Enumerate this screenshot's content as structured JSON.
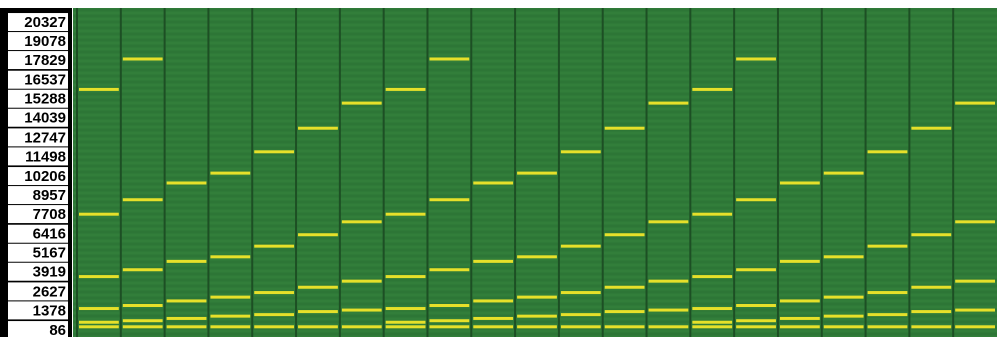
{
  "chart_data": {
    "type": "spectrogram",
    "ylim": [
      -370,
      21250
    ],
    "yticks": [
      86,
      1378,
      2627,
      3919,
      5167,
      6416,
      7708,
      8957,
      10206,
      11498,
      12747,
      14039,
      15288,
      16537,
      17829,
      19078,
      20327
    ],
    "columns": [
      [
        15900,
        7700,
        3600,
        1500,
        600,
        300
      ],
      [
        17900,
        8650,
        4050,
        1700,
        700,
        300
      ],
      [
        9750,
        4600,
        2000,
        850,
        300
      ],
      [
        10400,
        4900,
        2250,
        1000,
        300
      ],
      [
        11800,
        5600,
        2550,
        1100,
        300
      ],
      [
        13350,
        6350,
        2900,
        1300,
        300
      ],
      [
        15000,
        7200,
        3300,
        1400,
        300
      ],
      [
        15900,
        7700,
        3600,
        1500,
        600,
        300
      ],
      [
        17900,
        8650,
        4050,
        1700,
        700,
        300
      ],
      [
        9750,
        4600,
        2000,
        850,
        300
      ],
      [
        10400,
        4900,
        2250,
        1000,
        300
      ],
      [
        11800,
        5600,
        2550,
        1100,
        300
      ],
      [
        13350,
        6350,
        2900,
        1300,
        300
      ],
      [
        15000,
        7200,
        3300,
        1400,
        300
      ],
      [
        15900,
        7700,
        3600,
        1500,
        600,
        300
      ],
      [
        17900,
        8650,
        4050,
        1700,
        700,
        300
      ],
      [
        9750,
        4600,
        2000,
        850,
        300
      ],
      [
        10400,
        4900,
        2250,
        1000,
        300
      ],
      [
        11800,
        5600,
        2550,
        1100,
        300
      ],
      [
        13350,
        6350,
        2900,
        1300,
        300
      ],
      [
        15000,
        7200,
        3300,
        1400,
        300
      ]
    ],
    "color": "#e6e02a",
    "background": "#2f7a38"
  }
}
